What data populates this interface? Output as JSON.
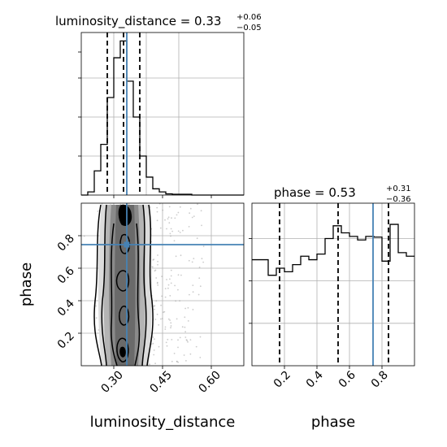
{
  "chart_data": {
    "type": "corner",
    "parameters": [
      "luminosity_distance",
      "phase"
    ],
    "truths": {
      "luminosity_distance": 0.34,
      "phase": 0.745
    },
    "colors": {
      "truth": "#4682b4",
      "hist": "#000000",
      "grid": "#b0b0b0",
      "scatter": "#9a9a9a"
    },
    "grid": true,
    "panels": {
      "luminosity_distance": {
        "title_prefix": "luminosity_distance = ",
        "median_text": "0.33",
        "plus_text": "+0.06",
        "minus_text": "−0.05",
        "quantiles": [
          0.28,
          0.33,
          0.38
        ],
        "xlim": [
          0.2,
          0.7
        ],
        "bins": [
          {
            "x0": 0.2,
            "x1": 0.22,
            "count": 0
          },
          {
            "x0": 0.22,
            "x1": 0.24,
            "count": 8
          },
          {
            "x0": 0.24,
            "x1": 0.26,
            "count": 62
          },
          {
            "x0": 0.26,
            "x1": 0.28,
            "count": 130
          },
          {
            "x0": 0.28,
            "x1": 0.3,
            "count": 250
          },
          {
            "x0": 0.3,
            "x1": 0.32,
            "count": 352
          },
          {
            "x0": 0.32,
            "x1": 0.34,
            "count": 395
          },
          {
            "x0": 0.34,
            "x1": 0.36,
            "count": 292
          },
          {
            "x0": 0.36,
            "x1": 0.38,
            "count": 200
          },
          {
            "x0": 0.38,
            "x1": 0.4,
            "count": 100
          },
          {
            "x0": 0.4,
            "x1": 0.42,
            "count": 46
          },
          {
            "x0": 0.42,
            "x1": 0.44,
            "count": 16
          },
          {
            "x0": 0.44,
            "x1": 0.46,
            "count": 8
          },
          {
            "x0": 0.46,
            "x1": 0.48,
            "count": 3
          },
          {
            "x0": 0.48,
            "x1": 0.54,
            "count": 2
          },
          {
            "x0": 0.54,
            "x1": 0.7,
            "count": 0
          }
        ],
        "ymax": 400
      },
      "phase": {
        "title_prefix": "phase = ",
        "median_text": "0.53",
        "plus_text": "+0.31",
        "minus_text": "−0.36",
        "quantiles": [
          0.17,
          0.53,
          0.84
        ],
        "xlim": [
          0.0,
          1.0
        ],
        "xticks": [
          "0.2",
          "0.4",
          "0.6",
          "0.8"
        ],
        "xlabel": "phase",
        "bins": [
          {
            "x0": 0.0,
            "x1": 0.1,
            "count": 150
          },
          {
            "x0": 0.1,
            "x1": 0.15,
            "count": 128
          },
          {
            "x0": 0.15,
            "x1": 0.2,
            "count": 138
          },
          {
            "x0": 0.2,
            "x1": 0.25,
            "count": 133
          },
          {
            "x0": 0.25,
            "x1": 0.3,
            "count": 143
          },
          {
            "x0": 0.3,
            "x1": 0.35,
            "count": 155
          },
          {
            "x0": 0.35,
            "x1": 0.4,
            "count": 150
          },
          {
            "x0": 0.4,
            "x1": 0.45,
            "count": 158
          },
          {
            "x0": 0.45,
            "x1": 0.5,
            "count": 180
          },
          {
            "x0": 0.5,
            "x1": 0.55,
            "count": 198
          },
          {
            "x0": 0.55,
            "x1": 0.6,
            "count": 188
          },
          {
            "x0": 0.6,
            "x1": 0.65,
            "count": 183
          },
          {
            "x0": 0.65,
            "x1": 0.7,
            "count": 178
          },
          {
            "x0": 0.7,
            "x1": 0.75,
            "count": 183
          },
          {
            "x0": 0.75,
            "x1": 0.8,
            "count": 182
          },
          {
            "x0": 0.8,
            "x1": 0.85,
            "count": 148
          },
          {
            "x0": 0.85,
            "x1": 0.9,
            "count": 200
          },
          {
            "x0": 0.9,
            "x1": 0.95,
            "count": 160
          },
          {
            "x0": 0.95,
            "x1": 1.0,
            "count": 155
          }
        ],
        "ymax": 230
      },
      "joint": {
        "xlim": [
          0.2,
          0.7
        ],
        "ylim": [
          0.0,
          1.0
        ],
        "xticks": [
          "0.30",
          "0.45",
          "0.60"
        ],
        "yticks": [
          "0.2",
          "0.4",
          "0.6",
          "0.8"
        ],
        "xlabel": "luminosity_distance",
        "ylabel": "phase"
      }
    }
  }
}
